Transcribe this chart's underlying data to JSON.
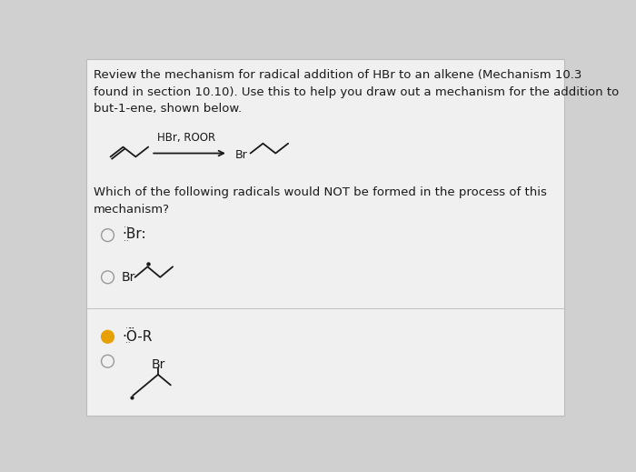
{
  "background_color": "#d0d0d0",
  "card_color": "#f0f0f0",
  "border_color": "#bbbbbb",
  "title_text": "Review the mechanism for radical addition of HBr to an alkene (Mechanism 10.3\nfound in section 10.10). Use this to help you draw out a mechanism for the addition to\nbut-1-ene, shown below.",
  "question_text": "Which of the following radicals would NOT be formed in the process of this\nmechanism?",
  "reagent_label": "HBr, ROOR",
  "text_color": "#1a1a1a",
  "line_color": "#1a1a1a",
  "selected_circle_color": "#e8a000",
  "font_size_body": 9.5,
  "font_size_chem": 9.5
}
